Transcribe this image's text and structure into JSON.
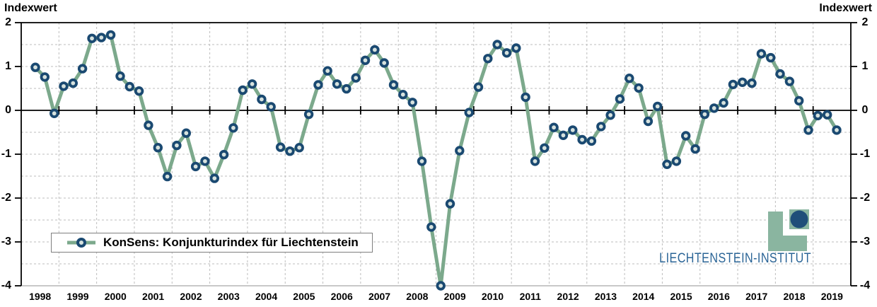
{
  "axis_title_left": "Indexwert",
  "axis_title_right": "Indexwert",
  "legend": {
    "label": "KonSens: Konjunkturindex für Liechtenstein"
  },
  "logo": {
    "text": "LIECHTENSTEIN-INSTITUT"
  },
  "colors": {
    "line": "#7CA98C",
    "marker_stroke": "#1A4971",
    "marker_fill": "#D7E2DE",
    "grid": "#BDBDBD",
    "axis": "#000000",
    "bottom_axis": "#A8A8A8",
    "legend_border": "#7F7F7F",
    "logo_green": "#8AB5A0",
    "logo_circle": "#1F4E79",
    "logo_text": "#2A6496",
    "text": "#000000",
    "background": "#FFFFFF"
  },
  "chart_data": {
    "type": "line",
    "title": "KonSens: Konjunkturindex für Liechtenstein",
    "ylabel_left": "Indexwert",
    "ylabel_right": "Indexwert",
    "ylim": [
      -4,
      2
    ],
    "ytick_values": [
      2,
      1,
      0,
      -1,
      -2,
      -3,
      -4
    ],
    "ytick_labels": [
      "2",
      "1",
      "0",
      "-1",
      "-2",
      "-3",
      "-4"
    ],
    "grid": "dashed",
    "grid_step_y": 0.5,
    "grid_step_x": "yearly",
    "legend_position": "bottom-left",
    "frequency": "quarterly",
    "x_years": [
      "1998",
      "1999",
      "2000",
      "2001",
      "2002",
      "2003",
      "2004",
      "2005",
      "2006",
      "2007",
      "2008",
      "2009",
      "2010",
      "2011",
      "2012",
      "2013",
      "2014",
      "2015",
      "2016",
      "2017",
      "2018",
      "2019"
    ],
    "series": [
      {
        "name": "KonSens: Konjunkturindex für Liechtenstein",
        "start": "1998-Q2",
        "start_quarter_offset": 1,
        "values": [
          0.98,
          0.76,
          -0.07,
          0.55,
          0.62,
          0.95,
          1.64,
          1.66,
          1.72,
          0.78,
          0.54,
          0.44,
          -0.34,
          -0.85,
          -1.51,
          -0.8,
          -0.52,
          -1.28,
          -1.16,
          -1.55,
          -1.01,
          -0.4,
          0.46,
          0.6,
          0.25,
          0.08,
          -0.84,
          -0.93,
          -0.85,
          -0.09,
          0.58,
          0.9,
          0.6,
          0.49,
          0.74,
          1.14,
          1.38,
          1.08,
          0.58,
          0.36,
          0.18,
          -1.16,
          -2.66,
          -4.0,
          -2.13,
          -0.92,
          -0.05,
          0.53,
          1.18,
          1.5,
          1.31,
          1.42,
          0.3,
          -1.16,
          -0.86,
          -0.39,
          -0.57,
          -0.45,
          -0.67,
          -0.7,
          -0.37,
          -0.11,
          0.26,
          0.73,
          0.51,
          -0.25,
          0.09,
          -1.23,
          -1.16,
          -0.58,
          -0.88,
          -0.09,
          0.05,
          0.17,
          0.59,
          0.64,
          0.62,
          1.29,
          1.2,
          0.83,
          0.66,
          0.22,
          -0.45,
          -0.12,
          -0.1,
          -0.45
        ]
      }
    ]
  }
}
